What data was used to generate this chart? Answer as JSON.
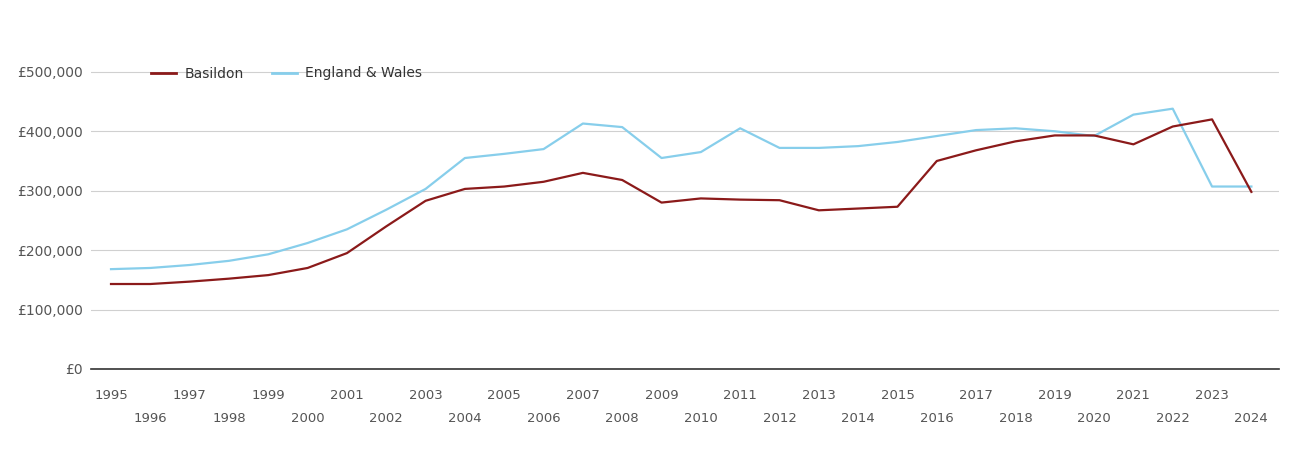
{
  "basildon_years": [
    1995,
    1996,
    1997,
    1998,
    1999,
    2000,
    2001,
    2002,
    2003,
    2004,
    2005,
    2006,
    2007,
    2008,
    2009,
    2010,
    2011,
    2012,
    2013,
    2014,
    2015,
    2016,
    2017,
    2018,
    2019,
    2020,
    2021,
    2022,
    2023,
    2024
  ],
  "basildon_values": [
    143000,
    143000,
    147000,
    152000,
    158000,
    170000,
    195000,
    240000,
    283000,
    303000,
    307000,
    315000,
    330000,
    318000,
    280000,
    287000,
    285000,
    284000,
    267000,
    270000,
    273000,
    350000,
    368000,
    383000,
    393000,
    393000,
    378000,
    408000,
    420000,
    298000
  ],
  "england_years": [
    1995,
    1996,
    1997,
    1998,
    1999,
    2000,
    2001,
    2002,
    2003,
    2004,
    2005,
    2006,
    2007,
    2008,
    2009,
    2010,
    2011,
    2012,
    2013,
    2014,
    2015,
    2016,
    2017,
    2018,
    2019,
    2020,
    2021,
    2022,
    2023,
    2024
  ],
  "england_values": [
    168000,
    170000,
    175000,
    182000,
    193000,
    212000,
    235000,
    268000,
    303000,
    355000,
    362000,
    370000,
    413000,
    407000,
    355000,
    365000,
    405000,
    372000,
    372000,
    375000,
    382000,
    392000,
    402000,
    405000,
    400000,
    392000,
    428000,
    438000,
    307000,
    307000
  ],
  "basildon_color": "#8B1A1A",
  "england_color": "#87CEEB",
  "legend_labels": [
    "Basildon",
    "England & Wales"
  ],
  "ytick_labels": [
    "£0",
    "£100,000",
    "£200,000",
    "£300,000",
    "£400,000",
    "£500,000"
  ],
  "ytick_values": [
    0,
    100000,
    200000,
    300000,
    400000,
    500000
  ],
  "ylim": [
    0,
    530000
  ],
  "xtick_odd": [
    1995,
    1997,
    1999,
    2001,
    2003,
    2005,
    2007,
    2009,
    2011,
    2013,
    2015,
    2017,
    2019,
    2021,
    2023
  ],
  "xtick_even": [
    1996,
    1998,
    2000,
    2002,
    2004,
    2006,
    2008,
    2010,
    2012,
    2014,
    2016,
    2018,
    2020,
    2022,
    2024
  ],
  "xlim": [
    1994.5,
    2024.7
  ],
  "bg_color": "#ffffff",
  "grid_color": "#d0d0d0",
  "line_width": 1.6
}
